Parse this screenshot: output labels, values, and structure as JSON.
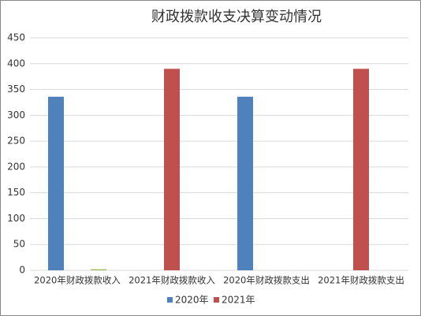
{
  "chart_data": {
    "type": "bar",
    "title": "财政拨款收支决算变动情况",
    "categories": [
      "2020年财政拨款收入",
      "2021年财政拨款收入",
      "2020年财政拨款支出",
      "2021年财政拨款支出"
    ],
    "series": [
      {
        "name": "2020年",
        "color": "#4f81bd",
        "values": [
          336,
          null,
          336,
          null
        ]
      },
      {
        "name": "2021年",
        "color": "#c0504d",
        "values": [
          null,
          390,
          null,
          390
        ]
      },
      {
        "color": "#9bbb59",
        "values": [
          2,
          null,
          null,
          null
        ]
      }
    ],
    "ylim": [
      0,
      450
    ],
    "yticks": [
      0,
      50,
      100,
      150,
      200,
      250,
      300,
      350,
      400,
      450
    ],
    "grid": true,
    "legend": "bottom"
  }
}
